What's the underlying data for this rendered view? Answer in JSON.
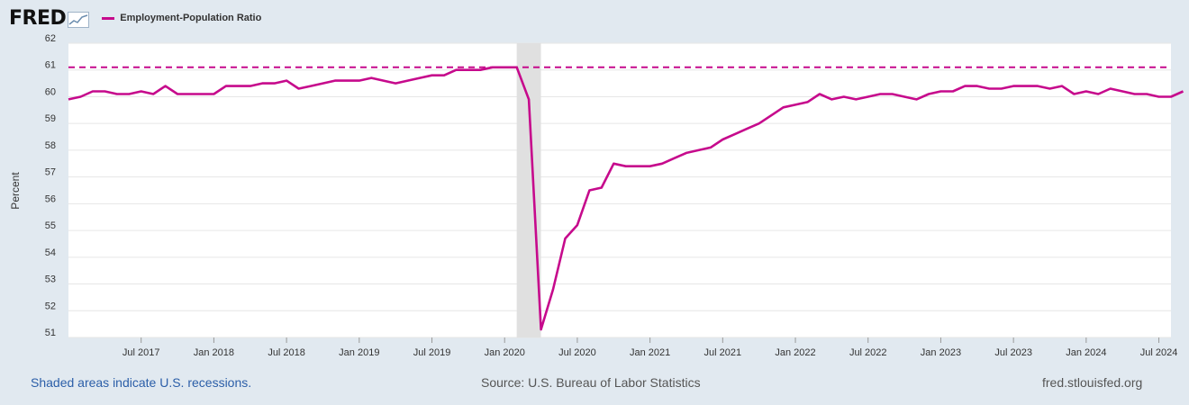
{
  "header": {
    "logo_text": "FRED",
    "legend_label": "Employment-Population Ratio"
  },
  "colors": {
    "series": "#c60a8c",
    "recession": "#e0e0e0",
    "background": "#e1e9f0"
  },
  "chart_data": {
    "type": "line",
    "ylabel": "Percent",
    "ylim": [
      51,
      62
    ],
    "y_ticks": [
      "51",
      "52",
      "53",
      "54",
      "55",
      "56",
      "57",
      "58",
      "59",
      "60",
      "61",
      "62"
    ],
    "x_ticks": [
      "Jul 2017",
      "Jan 2018",
      "Jul 2018",
      "Jan 2019",
      "Jul 2019",
      "Jan 2020",
      "Jul 2020",
      "Jan 2021",
      "Jul 2021",
      "Jan 2022",
      "Jul 2022",
      "Jan 2023",
      "Jul 2023",
      "Jan 2024",
      "Jul 2024"
    ],
    "x_tick_months": [
      6,
      12,
      18,
      24,
      30,
      36,
      42,
      48,
      54,
      60,
      66,
      72,
      78,
      84,
      90
    ],
    "x_range_months": [
      0,
      91
    ],
    "start_month": "Jan 2017",
    "recessions": [
      {
        "start_month": 37,
        "end_month": 39
      }
    ],
    "reference_line": {
      "value": 61.1,
      "style": "dashed"
    },
    "series": [
      {
        "name": "Employment-Population Ratio",
        "values": [
          59.9,
          60.0,
          60.2,
          60.2,
          60.1,
          60.1,
          60.2,
          60.1,
          60.4,
          60.1,
          60.1,
          60.1,
          60.1,
          60.4,
          60.4,
          60.4,
          60.5,
          60.5,
          60.6,
          60.3,
          60.4,
          60.5,
          60.6,
          60.6,
          60.6,
          60.7,
          60.6,
          60.5,
          60.6,
          60.7,
          60.8,
          60.8,
          61.0,
          61.0,
          61.0,
          61.1,
          61.1,
          61.1,
          59.9,
          51.3,
          52.8,
          54.7,
          55.2,
          56.5,
          56.6,
          57.5,
          57.4,
          57.4,
          57.4,
          57.5,
          57.7,
          57.9,
          58.0,
          58.1,
          58.4,
          58.6,
          58.8,
          59.0,
          59.3,
          59.6,
          59.7,
          59.8,
          60.1,
          59.9,
          60.0,
          59.9,
          60.0,
          60.1,
          60.1,
          60.0,
          59.9,
          60.1,
          60.2,
          60.2,
          60.4,
          60.4,
          60.3,
          60.3,
          60.4,
          60.4,
          60.4,
          60.3,
          60.4,
          60.1,
          60.2,
          60.1,
          60.3,
          60.2,
          60.1,
          60.1,
          60.0,
          60.0,
          60.2
        ]
      }
    ]
  },
  "footer": {
    "recession_note": "Shaded areas indicate U.S. recessions.",
    "source": "Source: U.S. Bureau of Labor Statistics",
    "site": "fred.stlouisfed.org"
  }
}
